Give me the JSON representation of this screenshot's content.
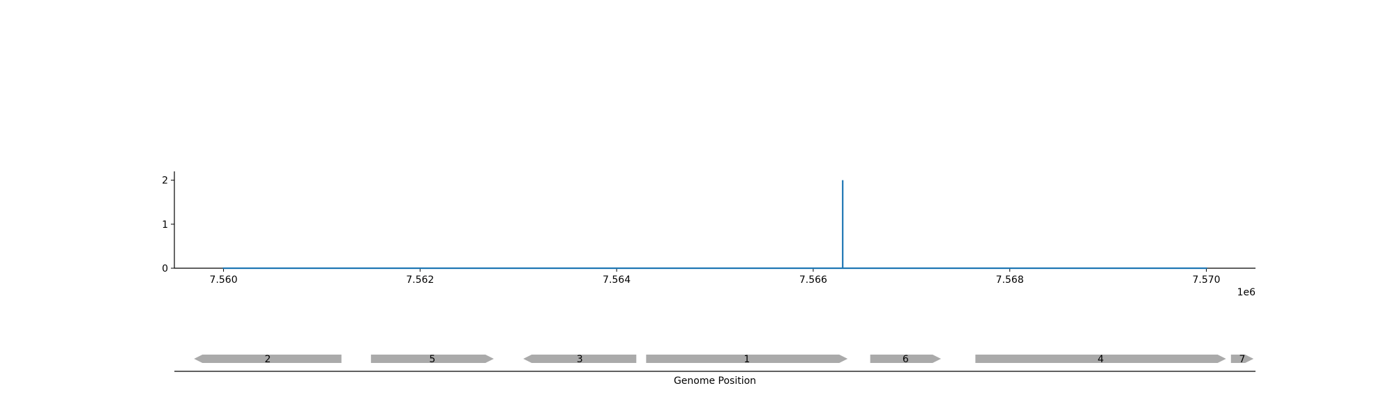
{
  "chart_data": [
    {
      "type": "line",
      "title": "",
      "xlabel": "",
      "ylabel": "",
      "x_offset_label": "1e6",
      "xlim": [
        7559500,
        7570500
      ],
      "ylim": [
        0,
        2.2
      ],
      "xticks": [
        7560000,
        7562000,
        7564000,
        7566000,
        7568000,
        7570000
      ],
      "xtick_labels": [
        "7.560",
        "7.562",
        "7.564",
        "7.566",
        "7.568",
        "7.570"
      ],
      "yticks": [
        0,
        1,
        2
      ],
      "ytick_labels": [
        "0",
        "1",
        "2"
      ],
      "grid": false,
      "series": [
        {
          "color": "#1f77b4",
          "x": [
            7560000,
            7566300,
            7566300,
            7566300,
            7570000
          ],
          "y": [
            0,
            0,
            2,
            0,
            0
          ]
        }
      ]
    },
    {
      "type": "gene_track",
      "xlabel": "Genome Position",
      "xlim": [
        7559500,
        7570500
      ],
      "color": "#aaaaaa",
      "genes": [
        {
          "label": "2",
          "start": 7559700,
          "end": 7561200,
          "strand": "-"
        },
        {
          "label": "5",
          "start": 7561500,
          "end": 7562750,
          "strand": "+"
        },
        {
          "label": "3",
          "start": 7563050,
          "end": 7564200,
          "strand": "-"
        },
        {
          "label": "1",
          "start": 7564300,
          "end": 7566350,
          "strand": "+"
        },
        {
          "label": "6",
          "start": 7566580,
          "end": 7567300,
          "strand": "+"
        },
        {
          "label": "4",
          "start": 7567650,
          "end": 7570200,
          "strand": "+"
        },
        {
          "label": "7",
          "start": 7570250,
          "end": 7570480,
          "strand": "+"
        }
      ]
    }
  ]
}
